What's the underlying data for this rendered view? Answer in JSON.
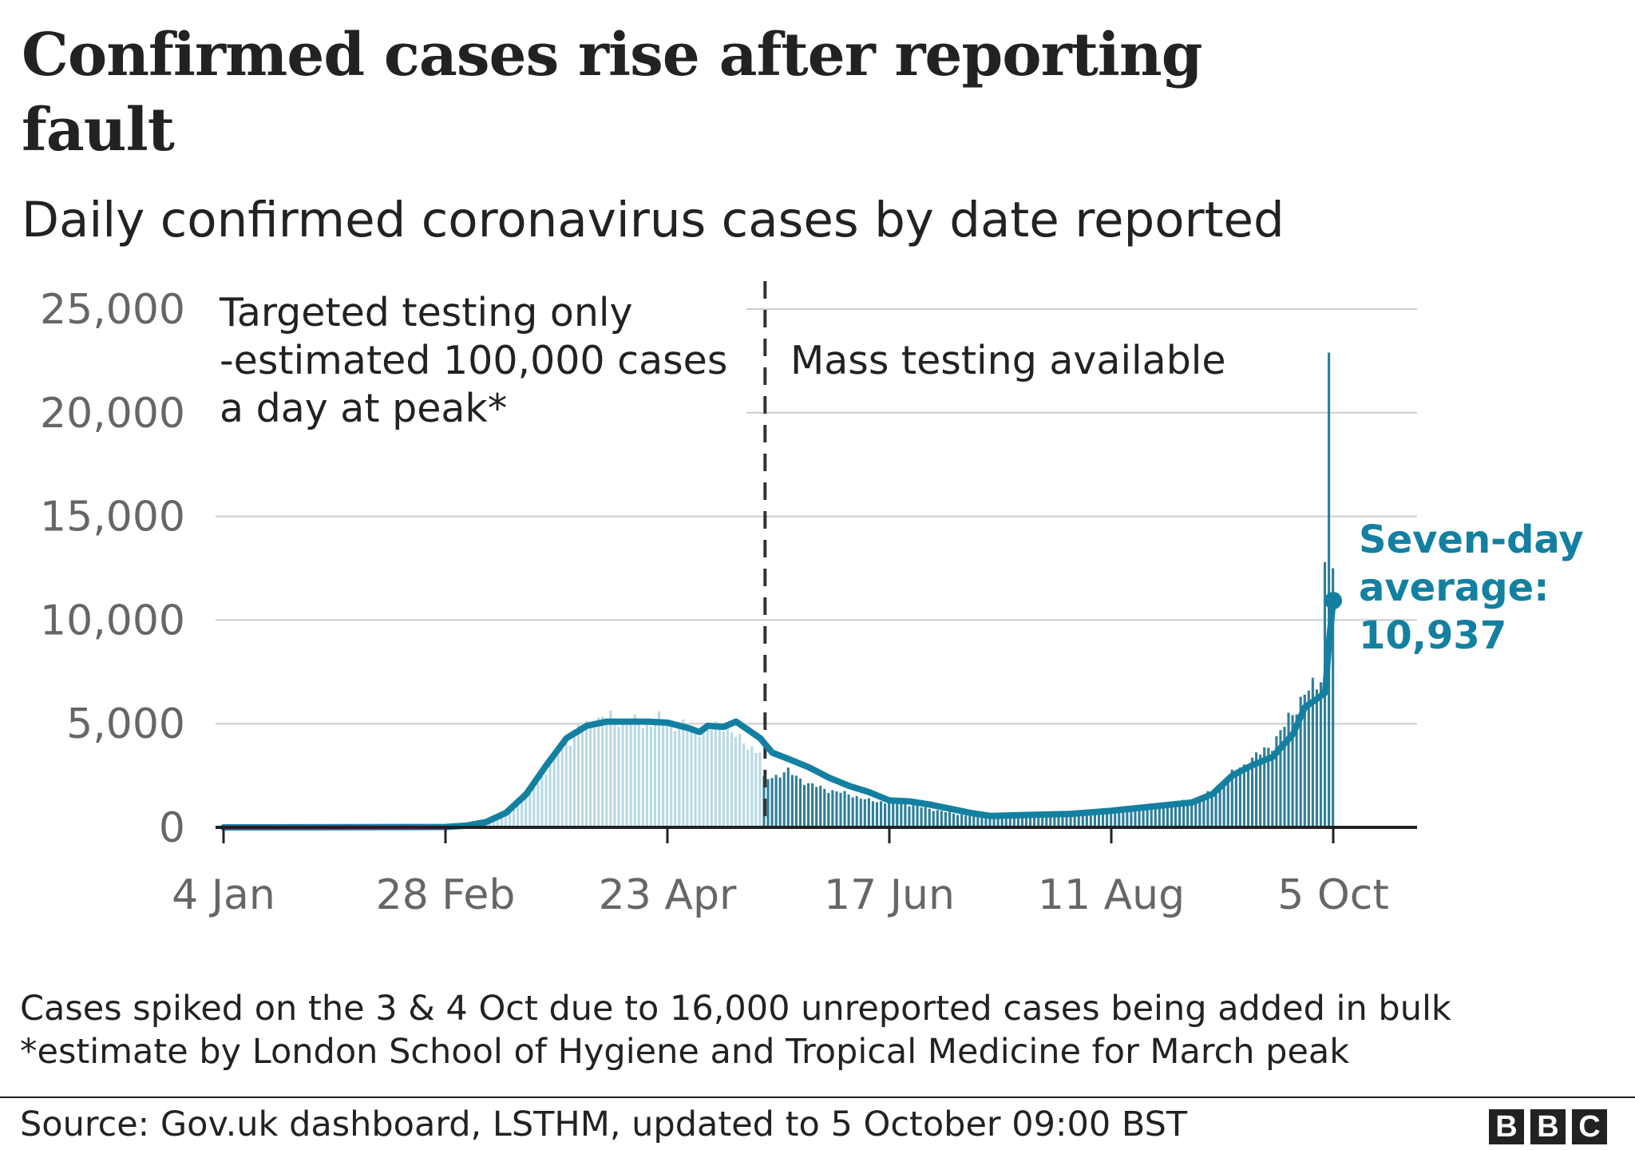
{
  "header": {
    "title": "Confirmed cases rise after reporting fault",
    "subtitle": "Daily confirmed coronavirus cases by date reported"
  },
  "colors": {
    "accent": "#1380a1",
    "bar_light": "#b8d9e3",
    "bar_dark": "#2e7f9a",
    "grid": "#cccccc",
    "axis": "#222222",
    "tick_text": "#666666",
    "divider": "#333333"
  },
  "chart_data": {
    "type": "bar",
    "title": "Confirmed cases rise after reporting fault",
    "subtitle": "Daily confirmed coronavirus cases by date reported",
    "xlabel": "",
    "ylabel": "",
    "ylim": [
      0,
      25000
    ],
    "grid": true,
    "yticks": [
      {
        "value": 0,
        "label": "0"
      },
      {
        "value": 5000,
        "label": "5,000"
      },
      {
        "value": 10000,
        "label": "10,000"
      },
      {
        "value": 15000,
        "label": "15,000"
      },
      {
        "value": 20000,
        "label": "20,000"
      },
      {
        "value": 25000,
        "label": "25,000"
      }
    ],
    "xticks": [
      {
        "day": 0,
        "label": "4 Jan"
      },
      {
        "day": 55,
        "label": "28 Feb"
      },
      {
        "day": 110,
        "label": "23 Apr"
      },
      {
        "day": 165,
        "label": "17 Jun"
      },
      {
        "day": 220,
        "label": "11 Aug"
      },
      {
        "day": 275,
        "label": "5 Oct"
      }
    ],
    "x_start_date": "4 Jan",
    "x_end_day": 275,
    "testing_change_day": 134,
    "annotations": {
      "left_region": [
        "Targeted testing only",
        "-estimated 100,000 cases",
        "a day at peak*"
      ],
      "right_region": "Mass testing available",
      "average_label": [
        "Seven-day",
        "average:",
        "10,937"
      ]
    },
    "series": [
      {
        "name": "Daily confirmed cases",
        "kind": "bars",
        "keypoints": [
          [
            0,
            0
          ],
          [
            55,
            40
          ],
          [
            62,
            150
          ],
          [
            68,
            400
          ],
          [
            72,
            900
          ],
          [
            76,
            1700
          ],
          [
            80,
            2700
          ],
          [
            84,
            3800
          ],
          [
            88,
            4700
          ],
          [
            92,
            5200
          ],
          [
            96,
            5300
          ],
          [
            100,
            5100
          ],
          [
            104,
            5000
          ],
          [
            108,
            5200
          ],
          [
            112,
            5000
          ],
          [
            116,
            4800
          ],
          [
            120,
            4700
          ],
          [
            124,
            5000
          ],
          [
            128,
            4200
          ],
          [
            133,
            3600
          ],
          [
            134,
            2300
          ],
          [
            140,
            2700
          ],
          [
            145,
            2100
          ],
          [
            150,
            1800
          ],
          [
            155,
            1600
          ],
          [
            160,
            1300
          ],
          [
            165,
            1200
          ],
          [
            170,
            1100
          ],
          [
            175,
            900
          ],
          [
            180,
            700
          ],
          [
            185,
            550
          ],
          [
            190,
            550
          ],
          [
            200,
            600
          ],
          [
            210,
            700
          ],
          [
            220,
            850
          ],
          [
            225,
            1000
          ],
          [
            230,
            1000
          ],
          [
            240,
            1300
          ],
          [
            245,
            1700
          ],
          [
            250,
            2600
          ],
          [
            255,
            3300
          ],
          [
            260,
            4000
          ],
          [
            265,
            5500
          ],
          [
            268,
            6500
          ],
          [
            271,
            6800
          ],
          [
            272,
            7000
          ],
          [
            273,
            12800
          ],
          [
            274,
            22900
          ],
          [
            275,
            12500
          ]
        ],
        "noise_amplitude": 0.08
      },
      {
        "name": "Seven-day average",
        "kind": "line",
        "points": [
          [
            0,
            0
          ],
          [
            55,
            20
          ],
          [
            60,
            80
          ],
          [
            65,
            250
          ],
          [
            70,
            700
          ],
          [
            75,
            1600
          ],
          [
            80,
            3000
          ],
          [
            85,
            4300
          ],
          [
            90,
            4900
          ],
          [
            95,
            5100
          ],
          [
            100,
            5100
          ],
          [
            105,
            5100
          ],
          [
            110,
            5050
          ],
          [
            115,
            4800
          ],
          [
            118,
            4600
          ],
          [
            120,
            4900
          ],
          [
            124,
            4850
          ],
          [
            127,
            5100
          ],
          [
            130,
            4700
          ],
          [
            133,
            4300
          ],
          [
            136,
            3600
          ],
          [
            140,
            3300
          ],
          [
            145,
            2900
          ],
          [
            150,
            2400
          ],
          [
            155,
            2000
          ],
          [
            160,
            1700
          ],
          [
            165,
            1300
          ],
          [
            170,
            1250
          ],
          [
            175,
            1100
          ],
          [
            180,
            900
          ],
          [
            185,
            700
          ],
          [
            190,
            550
          ],
          [
            200,
            600
          ],
          [
            210,
            650
          ],
          [
            220,
            800
          ],
          [
            225,
            900
          ],
          [
            230,
            1000
          ],
          [
            240,
            1200
          ],
          [
            245,
            1600
          ],
          [
            250,
            2500
          ],
          [
            255,
            3000
          ],
          [
            260,
            3400
          ],
          [
            265,
            4500
          ],
          [
            268,
            5800
          ],
          [
            271,
            6200
          ],
          [
            273,
            6500
          ],
          [
            274,
            9000
          ],
          [
            275,
            10937
          ]
        ]
      }
    ]
  },
  "notes": [
    "Cases spiked on the 3 & 4 Oct due to 16,000 unreported cases being added in bulk",
    "*estimate by London School of Hygiene and Tropical Medicine for March peak"
  ],
  "source": "Source: Gov.uk dashboard, LSTHM, updated to 5 October 09:00 BST",
  "logo": {
    "letters": [
      "B",
      "B",
      "C"
    ]
  }
}
